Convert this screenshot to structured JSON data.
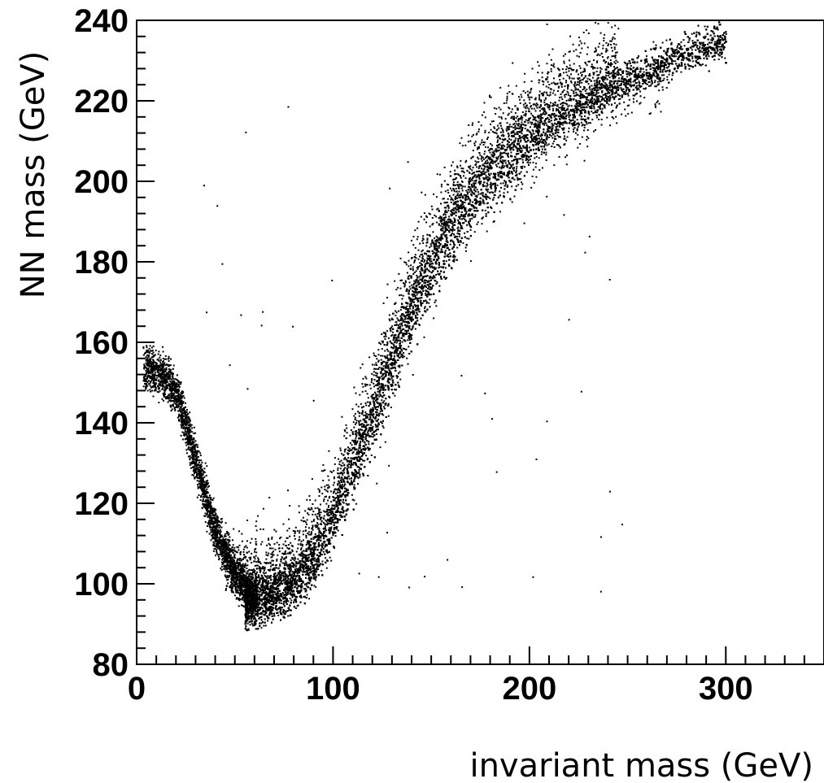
{
  "chart_data": {
    "type": "scatter",
    "title": "",
    "xlabel": "invariant mass (GeV)",
    "ylabel": "NN mass (GeV)",
    "xlim": [
      0,
      350
    ],
    "ylim": [
      80,
      240
    ],
    "x_ticks": [
      0,
      100,
      200,
      300
    ],
    "y_ticks": [
      80,
      100,
      120,
      140,
      160,
      180,
      200,
      220,
      240
    ],
    "x_tick_labels": [
      "0",
      "100",
      "200",
      "300"
    ],
    "y_tick_labels": [
      "80",
      "100",
      "120",
      "140",
      "160",
      "180",
      "200",
      "220",
      "240"
    ],
    "grid": false,
    "legend": "none",
    "marker_color": "#000000",
    "series": [
      {
        "band_center": [
          [
            60,
            96
          ],
          [
            70,
            97
          ],
          [
            80,
            100
          ],
          [
            90,
            106
          ],
          [
            100,
            116
          ],
          [
            110,
            128
          ],
          [
            120,
            141
          ],
          [
            130,
            155
          ],
          [
            140,
            168
          ],
          [
            150,
            179
          ],
          [
            160,
            188
          ],
          [
            170,
            195
          ],
          [
            180,
            201
          ],
          [
            190,
            206
          ],
          [
            200,
            210
          ],
          [
            220,
            217
          ],
          [
            240,
            223
          ],
          [
            260,
            228
          ],
          [
            280,
            232
          ],
          [
            298,
            235
          ]
        ],
        "hook_branch": [
          [
            3,
            154
          ],
          [
            10,
            153
          ],
          [
            20,
            148
          ],
          [
            30,
            130
          ],
          [
            40,
            113
          ],
          [
            50,
            103
          ],
          [
            58,
            97
          ]
        ]
      }
    ]
  }
}
